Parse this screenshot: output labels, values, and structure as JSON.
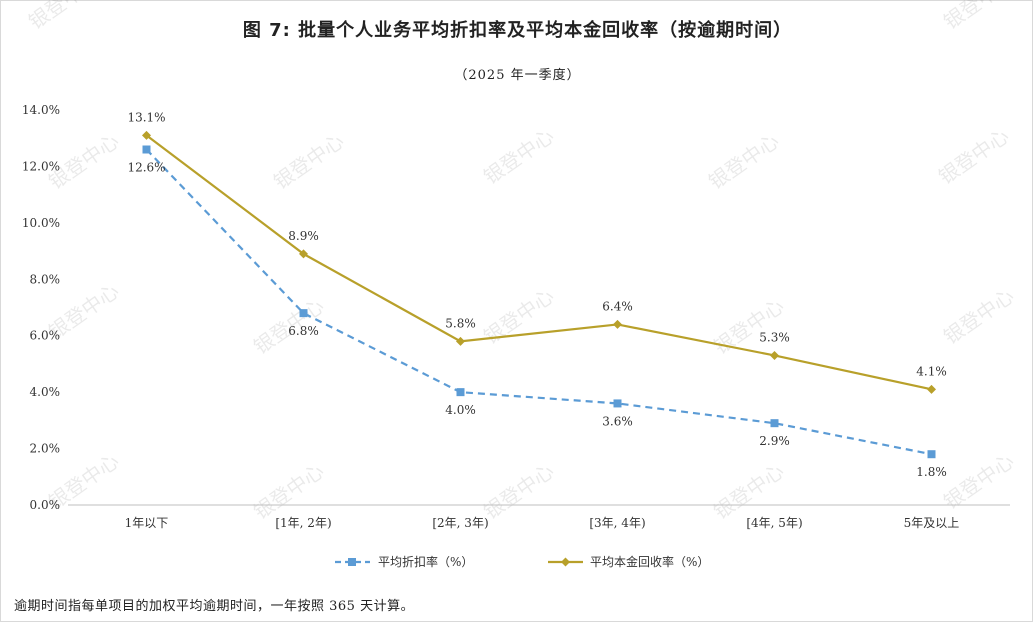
{
  "title": "图 7:  批量个人业务平均折扣率及平均本金回收率（按逾期时间）",
  "subtitle": "（2025 年一季度）",
  "footnote": "逾期时间指每单项目的加权平均逾期时间，一年按照 365 天计算。",
  "watermark": "银登中心",
  "colors": {
    "discount": "#5b9bd5",
    "recovery": "#b8a02a",
    "axis": "#bfbfbf"
  },
  "chart_data": {
    "type": "line",
    "title": "图 7:  批量个人业务平均折扣率及平均本金回收率（按逾期时间）",
    "subtitle": "（2025 年一季度）",
    "categories": [
      "1年以下",
      "[1年, 2年)",
      "[2年, 3年)",
      "[3年, 4年)",
      "[4年, 5年)",
      "5年及以上"
    ],
    "y_ticks": [
      "0.0%",
      "2.0%",
      "4.0%",
      "6.0%",
      "8.0%",
      "10.0%",
      "12.0%",
      "14.0%"
    ],
    "ylim": [
      0,
      14
    ],
    "grid": false,
    "legend_position": "bottom",
    "series": [
      {
        "name": "平均折扣率（%）",
        "values": [
          12.6,
          6.8,
          4.0,
          3.6,
          2.9,
          1.8
        ],
        "labels": [
          "12.6%",
          "6.8%",
          "4.0%",
          "3.6%",
          "2.9%",
          "1.8%"
        ],
        "style": "dashed",
        "marker": "square"
      },
      {
        "name": "平均本金回收率（%）",
        "values": [
          13.1,
          8.9,
          5.8,
          6.4,
          5.3,
          4.1
        ],
        "labels": [
          "13.1%",
          "8.9%",
          "5.8%",
          "6.4%",
          "5.3%",
          "4.1%"
        ],
        "style": "solid",
        "marker": "diamond"
      }
    ]
  }
}
